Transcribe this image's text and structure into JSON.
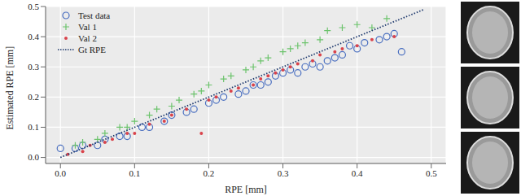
{
  "chart_data": {
    "type": "scatter",
    "x_label": "RPE [mm]",
    "y_label": "Estimated RPE [mm]",
    "xlim": [
      -0.02,
      0.52
    ],
    "ylim": [
      -0.02,
      0.5
    ],
    "xticks": [
      {
        "value": 0,
        "label": "0.0"
      },
      {
        "value": 0.1,
        "label": "0.1"
      },
      {
        "value": 0.2,
        "label": "0.2"
      },
      {
        "value": 0.3,
        "label": "0.3"
      },
      {
        "value": 0.4,
        "label": "0.4"
      },
      {
        "value": 0.5,
        "label": "0.5"
      }
    ],
    "yticks": [
      {
        "value": 0,
        "label": "0.0"
      },
      {
        "value": 0.1,
        "label": "0.1"
      },
      {
        "value": 0.2,
        "label": "0.2"
      },
      {
        "value": 0.3,
        "label": "0.3"
      },
      {
        "value": 0.4,
        "label": "0.4"
      },
      {
        "value": 0.5,
        "label": "0.5"
      }
    ],
    "grid": true,
    "legend": "upper left",
    "series": [
      {
        "name": "Test data",
        "color": "#4a6fc0",
        "marker": "circle",
        "x": [
          0.0,
          0.02,
          0.03,
          0.05,
          0.06,
          0.08,
          0.09,
          0.11,
          0.12,
          0.14,
          0.15,
          0.17,
          0.18,
          0.2,
          0.21,
          0.22,
          0.24,
          0.25,
          0.26,
          0.27,
          0.28,
          0.29,
          0.3,
          0.31,
          0.32,
          0.33,
          0.34,
          0.35,
          0.36,
          0.37,
          0.38,
          0.39,
          0.4,
          0.41,
          0.43,
          0.44,
          0.45,
          0.46
        ],
        "values": [
          0.03,
          0.03,
          0.04,
          0.04,
          0.06,
          0.07,
          0.07,
          0.1,
          0.1,
          0.12,
          0.14,
          0.15,
          0.16,
          0.18,
          0.19,
          0.2,
          0.21,
          0.22,
          0.24,
          0.24,
          0.25,
          0.27,
          0.28,
          0.29,
          0.28,
          0.3,
          0.31,
          0.3,
          0.32,
          0.33,
          0.34,
          0.37,
          0.36,
          0.38,
          0.39,
          0.4,
          0.41,
          0.35
        ]
      },
      {
        "name": "Val 1",
        "color": "#6cc36c",
        "marker": "plus",
        "x": [
          0.02,
          0.03,
          0.05,
          0.06,
          0.08,
          0.09,
          0.1,
          0.12,
          0.13,
          0.15,
          0.16,
          0.18,
          0.19,
          0.2,
          0.22,
          0.23,
          0.25,
          0.26,
          0.27,
          0.28,
          0.3,
          0.31,
          0.32,
          0.33,
          0.35,
          0.36,
          0.38,
          0.4,
          0.42,
          0.44
        ],
        "values": [
          0.04,
          0.05,
          0.06,
          0.08,
          0.1,
          0.1,
          0.12,
          0.14,
          0.16,
          0.17,
          0.19,
          0.21,
          0.22,
          0.24,
          0.26,
          0.27,
          0.29,
          0.3,
          0.32,
          0.33,
          0.35,
          0.36,
          0.37,
          0.38,
          0.39,
          0.42,
          0.43,
          0.44,
          0.43,
          0.46
        ]
      },
      {
        "name": "Val 2",
        "color": "#d9434b",
        "marker": "dot",
        "x": [
          0.01,
          0.03,
          0.04,
          0.06,
          0.07,
          0.09,
          0.1,
          0.12,
          0.14,
          0.15,
          0.17,
          0.19,
          0.2,
          0.21,
          0.23,
          0.24,
          0.26,
          0.27,
          0.28,
          0.29,
          0.3,
          0.31,
          0.32,
          0.34,
          0.35,
          0.37,
          0.38,
          0.4,
          0.42,
          0.45
        ],
        "values": [
          0.01,
          0.02,
          0.04,
          0.05,
          0.06,
          0.08,
          0.08,
          0.11,
          0.12,
          0.14,
          0.16,
          0.08,
          0.19,
          0.2,
          0.22,
          0.23,
          0.24,
          0.26,
          0.27,
          0.28,
          0.29,
          0.3,
          0.31,
          0.32,
          0.34,
          0.35,
          0.36,
          0.37,
          0.39,
          0.4
        ]
      },
      {
        "name": "Gt RPE",
        "color": "#1f3a6e",
        "marker": "none",
        "line_style": "dotted",
        "x": [
          0,
          0.49
        ],
        "values": [
          0,
          0.49
        ]
      }
    ]
  }
}
